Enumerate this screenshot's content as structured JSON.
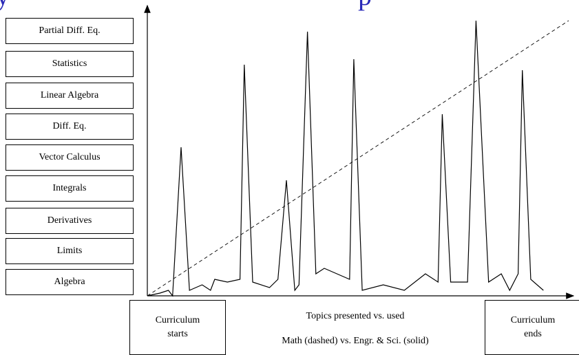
{
  "title": {
    "left_fragment": "y",
    "right_fragment": "p"
  },
  "topics": [
    "Partial Diff. Eq.",
    "Statistics",
    "Linear Algebra",
    "Diff. Eq.",
    "Vector Calculus",
    "Integrals",
    "Derivatives",
    "Limits",
    "Algebra"
  ],
  "bottom": {
    "start_line1": "Curriculum",
    "start_line2": "starts",
    "end_line1": "Curriculum",
    "end_line2": "ends",
    "caption_line1": "Topics presented vs. used",
    "caption_line2": "Math (dashed) vs. Engr. & Sci. (solid)"
  },
  "chart_data": {
    "type": "line",
    "series": [
      {
        "name": "Math (dashed)",
        "style": "dashed",
        "points": [
          [
            0,
            0
          ],
          [
            100,
            100
          ]
        ]
      },
      {
        "name": "Engr. & Sci. (solid)",
        "style": "solid",
        "points": [
          [
            0,
            0
          ],
          [
            3,
            1
          ],
          [
            5,
            2
          ],
          [
            6,
            0
          ],
          [
            8,
            54
          ],
          [
            10,
            2
          ],
          [
            13,
            4
          ],
          [
            15,
            2
          ],
          [
            16,
            6
          ],
          [
            19,
            5
          ],
          [
            22,
            6
          ],
          [
            23,
            84
          ],
          [
            25,
            5
          ],
          [
            29,
            3
          ],
          [
            31,
            6
          ],
          [
            33,
            42
          ],
          [
            35,
            2
          ],
          [
            36,
            4
          ],
          [
            38,
            96
          ],
          [
            40,
            8
          ],
          [
            42,
            10
          ],
          [
            48,
            6
          ],
          [
            49,
            86
          ],
          [
            51,
            2
          ],
          [
            56,
            4
          ],
          [
            61,
            2
          ],
          [
            66,
            8
          ],
          [
            69,
            5
          ],
          [
            70,
            66
          ],
          [
            72,
            5
          ],
          [
            73,
            5
          ],
          [
            76,
            5
          ],
          [
            78,
            100
          ],
          [
            81,
            5
          ],
          [
            84,
            8
          ],
          [
            86,
            2
          ],
          [
            88,
            8
          ],
          [
            89,
            82
          ],
          [
            91,
            6
          ],
          [
            94,
            2
          ]
        ]
      }
    ],
    "xlim": [
      0,
      100
    ],
    "ylim": [
      0,
      100
    ],
    "color_line": "#000000",
    "color_title": "#2a2ab8"
  }
}
